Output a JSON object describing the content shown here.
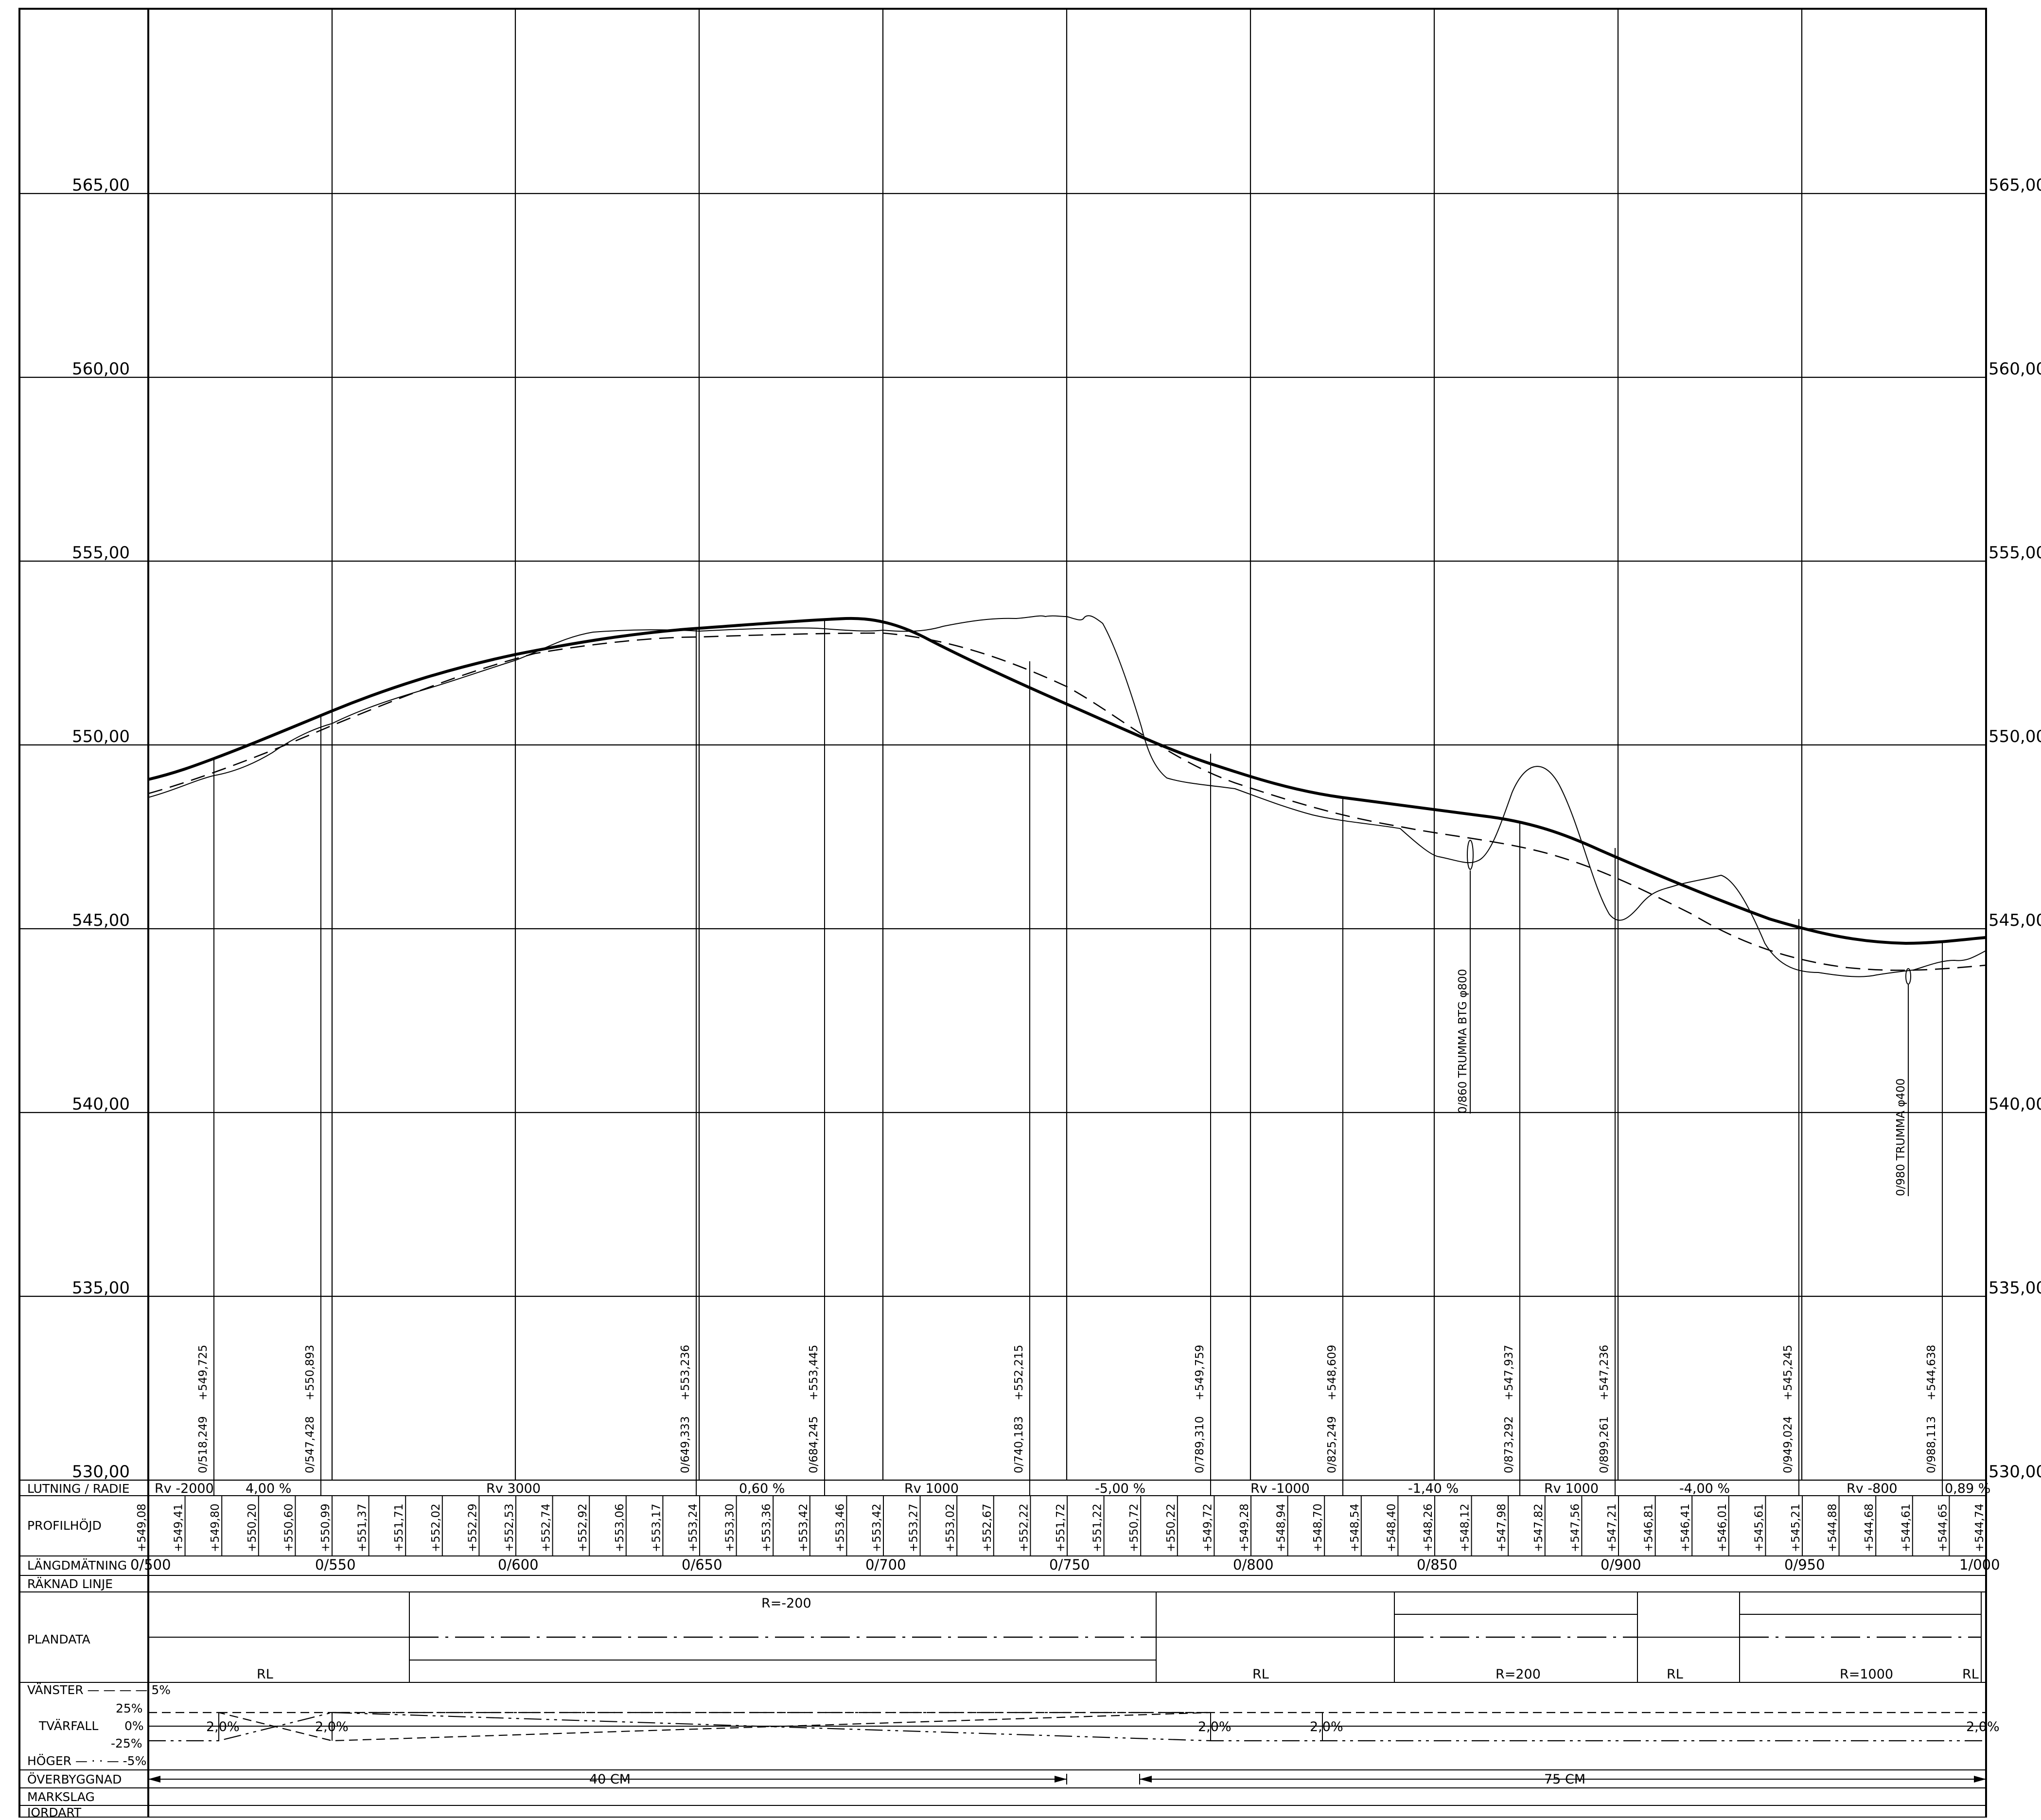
{
  "profile": {
    "elevation_labels": [
      "565,00",
      "560,00",
      "555,00",
      "550,00",
      "545,00",
      "540,00",
      "535,00",
      "530,00"
    ],
    "station_labels": [
      "0/500",
      "0/550",
      "0/600",
      "0/650",
      "0/700",
      "0/750",
      "0/800",
      "0/850",
      "0/900",
      "0/950",
      "1/000"
    ],
    "design_points": [
      {
        "station": "0/518,249",
        "height": "+549,725"
      },
      {
        "station": "0/547,428",
        "height": "+550,893"
      },
      {
        "station": "0/649,333",
        "height": "+553,236"
      },
      {
        "station": "0/684,245",
        "height": "+553,445"
      },
      {
        "station": "0/740,183",
        "height": "+552,215"
      },
      {
        "station": "0/789,310",
        "height": "+549,759"
      },
      {
        "station": "0/825,249",
        "height": "+548,609"
      },
      {
        "station": "0/873,292",
        "height": "+547,937"
      },
      {
        "station": "0/899,261",
        "height": "+547,236"
      },
      {
        "station": "0/949,024",
        "height": "+545,245"
      },
      {
        "station": "0/988,113",
        "height": "+544,638"
      }
    ],
    "culverts": [
      {
        "label": "0/860 TRUMMA  BTG φ800"
      },
      {
        "label": "0/980 TRUMMA φ400"
      }
    ]
  },
  "table": {
    "row_labels": {
      "lutning": "LUTNING / RADIE",
      "profilhojd": "PROFILHÖJD",
      "langdmatning": "LÄNGDMÄTNING",
      "raknad_linje": "RÄKNAD LINJE",
      "plandata": "PLANDATA",
      "vanster": "VÄNSTER — — — —  5%",
      "tvarfall": "TVÄRFALL",
      "hoger": "HÖGER — · · —  -5%",
      "overbyggnad": "ÖVERBYGGNAD",
      "markslag": "MARKSLAG",
      "jordart": "JORDART"
    },
    "lutning_radie": [
      "Rv -2000",
      "4,00  %",
      "Rv 3000",
      "0,60  %",
      "Rv 1000",
      "-5,00  %",
      "Rv -1000",
      "-1,40  %",
      "Rv 1000",
      "-4,00  %",
      "Rv -800",
      "0,89  %"
    ],
    "profilhojd": [
      "+549,08",
      "+549,41",
      "+549,80",
      "+550,20",
      "+550,60",
      "+550,99",
      "+551,37",
      "+551,71",
      "+552,02",
      "+552,29",
      "+552,53",
      "+552,74",
      "+552,92",
      "+553,06",
      "+553,17",
      "+553,24",
      "+553,30",
      "+553,36",
      "+553,42",
      "+553,46",
      "+553,42",
      "+553,27",
      "+553,02",
      "+552,67",
      "+552,22",
      "+551,72",
      "+551,22",
      "+550,72",
      "+550,22",
      "+549,72",
      "+549,28",
      "+548,94",
      "+548,70",
      "+548,54",
      "+548,40",
      "+548,26",
      "+548,12",
      "+547,98",
      "+547,82",
      "+547,56",
      "+547,21",
      "+546,81",
      "+546,41",
      "+546,01",
      "+545,61",
      "+545,21",
      "+544,88",
      "+544,68",
      "+544,61",
      "+544,65",
      "+544,74"
    ],
    "plandata": {
      "radius_top": "R=-200",
      "bottom_labels": [
        "RL",
        "RL",
        "R=200",
        "RL",
        "R=1000",
        "RL"
      ]
    },
    "tvarfall": {
      "scale": [
        "25%",
        "0%",
        "-25%"
      ],
      "values": [
        "2,0%",
        "2,0%",
        "2,0%",
        "2,0%",
        "2,0%"
      ]
    },
    "overbyggnad": [
      "40 CM",
      "75 CM"
    ]
  }
}
